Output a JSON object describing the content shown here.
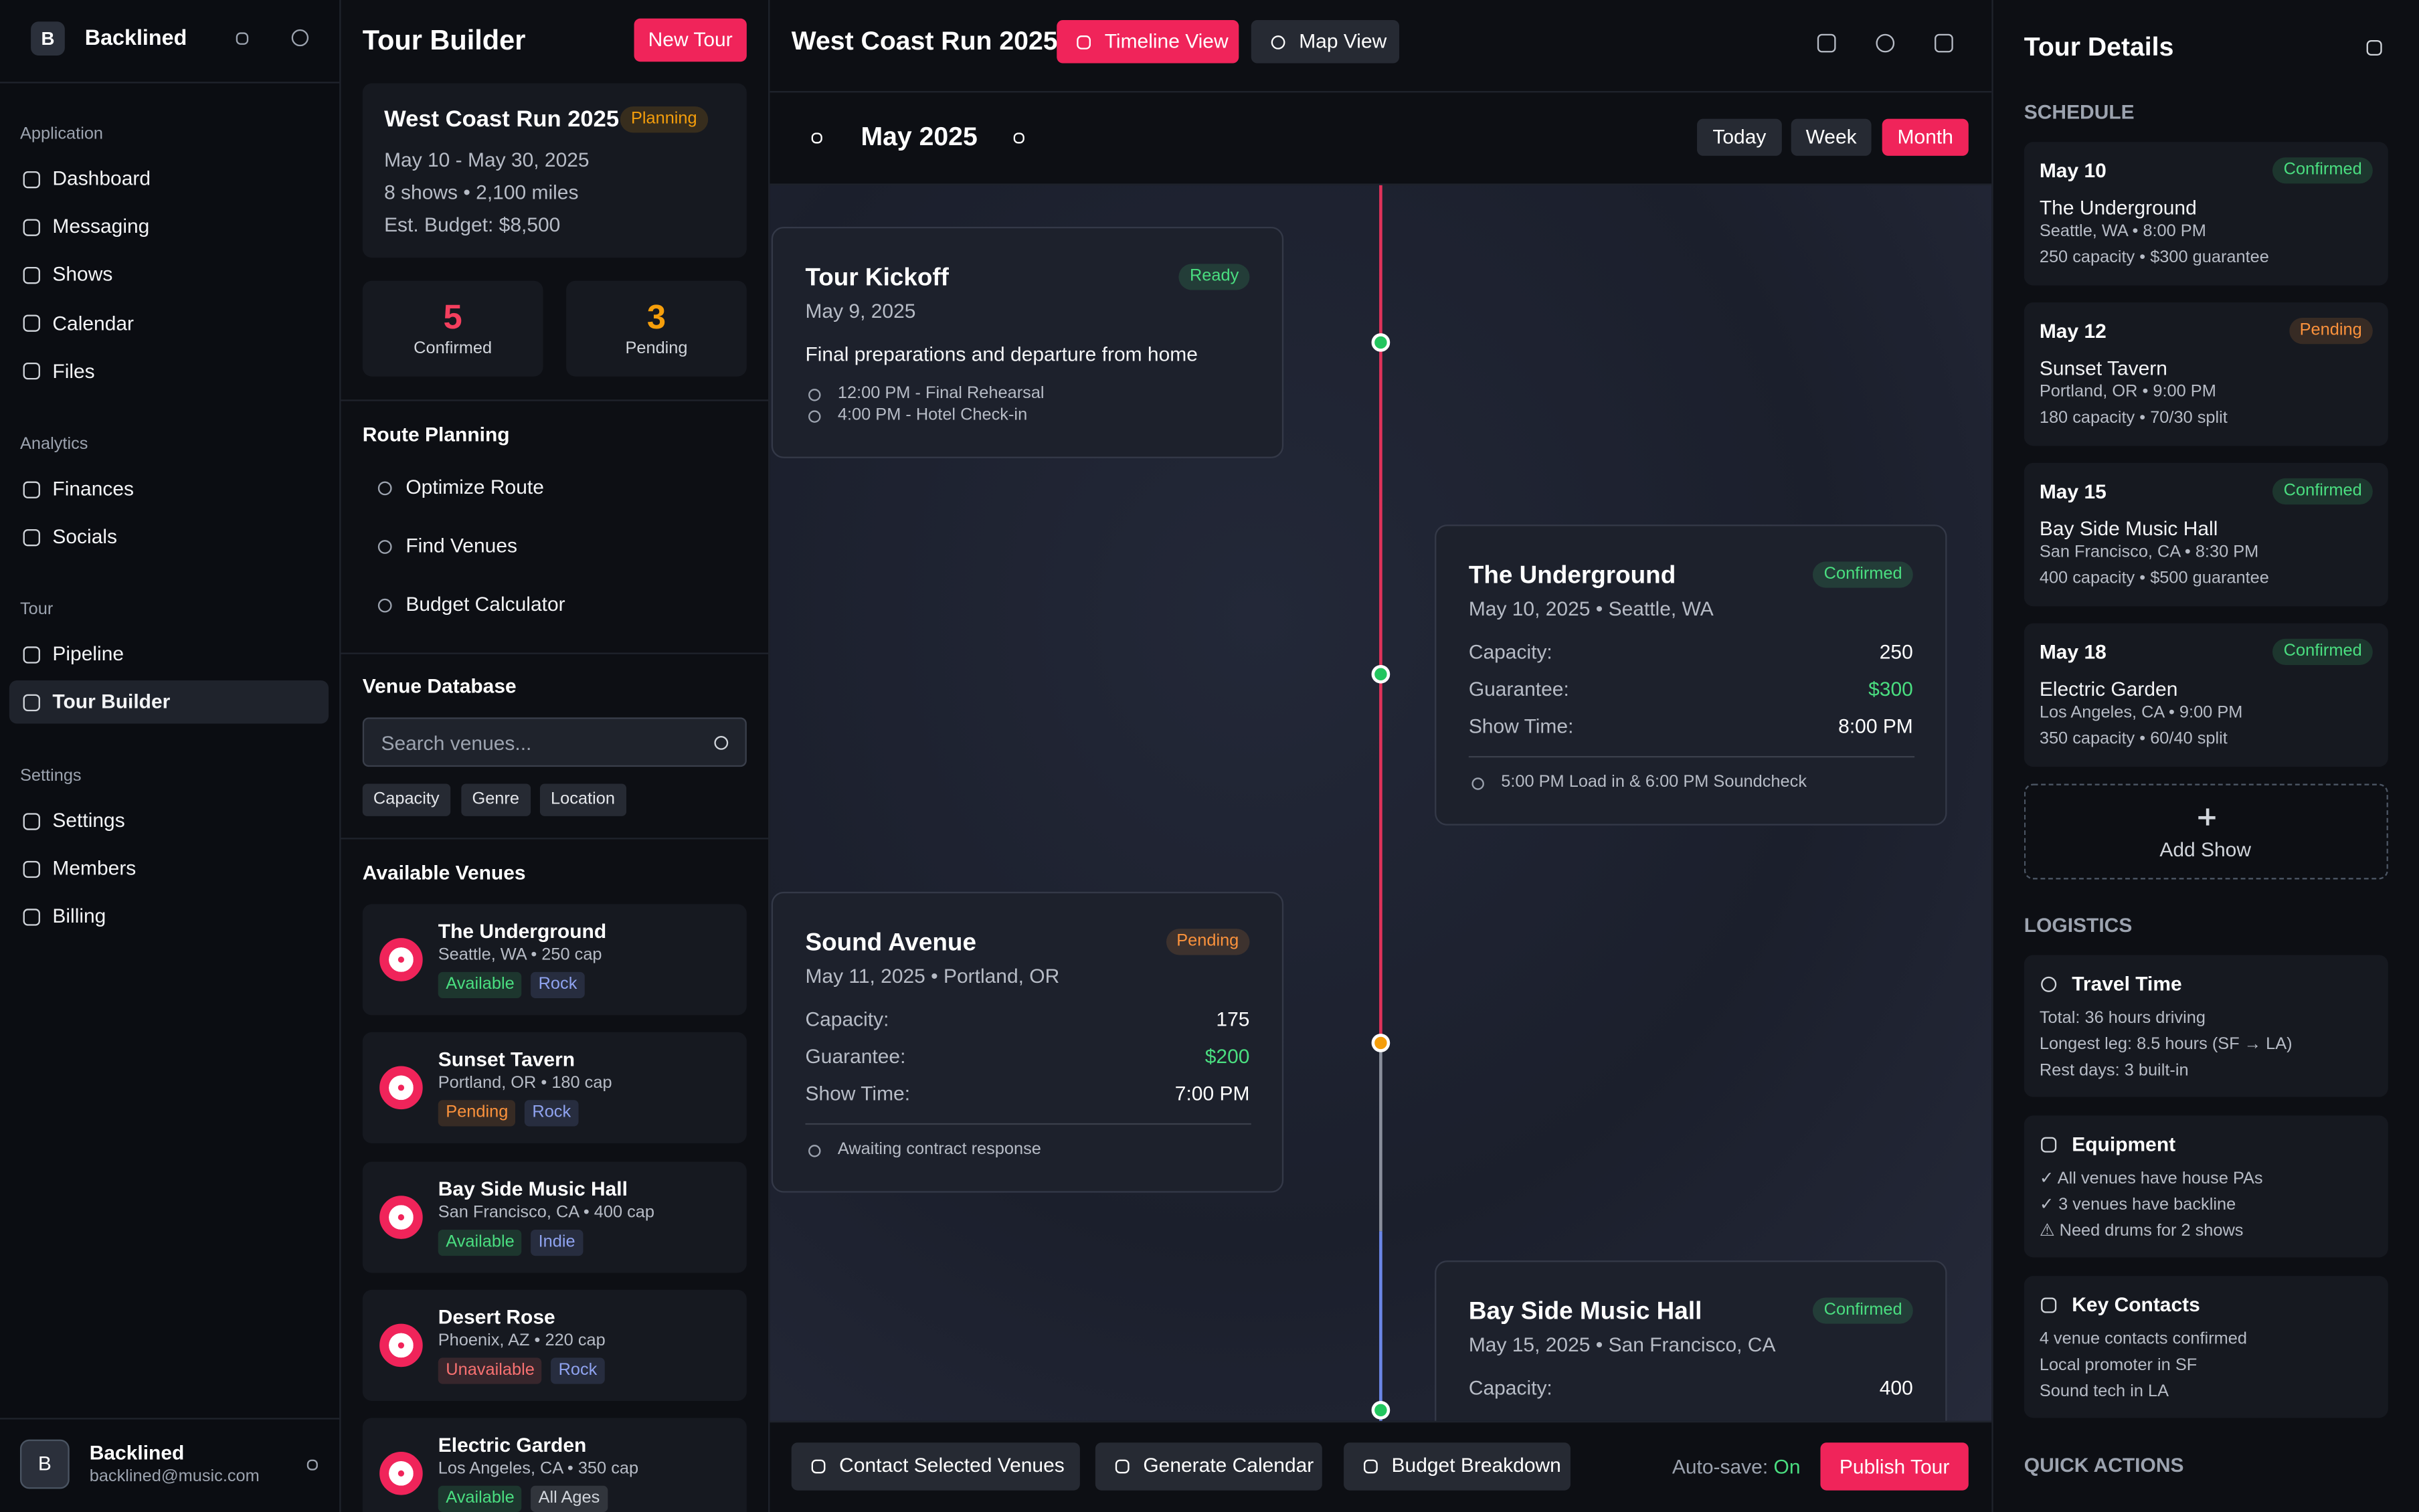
{
  "sidebar": {
    "workspace_initial": "B",
    "workspace": "Backlined",
    "sections": [
      {
        "title": "Application",
        "items": [
          "Dashboard",
          "Messaging",
          "Shows",
          "Calendar",
          "Files"
        ]
      },
      {
        "title": "Analytics",
        "items": [
          "Finances",
          "Socials"
        ]
      },
      {
        "title": "Tour",
        "items": [
          "Pipeline",
          "Tour Builder"
        ]
      },
      {
        "title": "Settings",
        "items": [
          "Settings",
          "Members",
          "Billing"
        ]
      }
    ],
    "user": {
      "initial": "B",
      "name": "Backlined",
      "email": "backlined@music.com"
    }
  },
  "builder": {
    "title": "Tour Builder",
    "new_button": "New Tour",
    "tour": {
      "name": "West Coast Run 2025",
      "status": {
        "text": "Planning",
        "color": "#f59e0b"
      },
      "dates": "May 10 - May 30, 2025",
      "summary": "8 shows • 2,100 miles",
      "budget": "Est. Budget: $8,500"
    },
    "stats": [
      {
        "value": 5,
        "label": "Confirmed",
        "color": "#f43f5e"
      },
      {
        "value": 3,
        "label": "Pending",
        "color": "#f59e0b"
      }
    ],
    "route_title": "Route Planning",
    "route_items": [
      "Optimize Route",
      "Find Venues",
      "Budget Calculator"
    ],
    "venue_db_title": "Venue Database",
    "search_placeholder": "Search venues...",
    "filters": [
      "Capacity",
      "Genre",
      "Location"
    ],
    "available_title": "Available Venues",
    "venues": [
      {
        "name": "The Underground",
        "detail": "Seattle, WA • 250 cap",
        "tags": [
          {
            "text": "Available",
            "color": "#4ade80"
          },
          {
            "text": "Rock",
            "color": "#8fa3f0"
          }
        ]
      },
      {
        "name": "Sunset Tavern",
        "detail": "Portland, OR • 180 cap",
        "tags": [
          {
            "text": "Pending",
            "color": "#fb923c"
          },
          {
            "text": "Rock",
            "color": "#8fa3f0"
          }
        ]
      },
      {
        "name": "Bay Side Music Hall",
        "detail": "San Francisco, CA • 400 cap",
        "tags": [
          {
            "text": "Available",
            "color": "#4ade80"
          },
          {
            "text": "Indie",
            "color": "#8fa3f0"
          }
        ]
      },
      {
        "name": "Desert Rose",
        "detail": "Phoenix, AZ • 220 cap",
        "tags": [
          {
            "text": "Unavailable",
            "color": "#f87171"
          },
          {
            "text": "Rock",
            "color": "#8fa3f0"
          }
        ]
      },
      {
        "name": "Electric Garden",
        "detail": "Los Angeles, CA • 350 cap",
        "tags": [
          {
            "text": "Available",
            "color": "#4ade80"
          },
          {
            "text": "All Ages",
            "color": "#d1d5db"
          }
        ]
      }
    ]
  },
  "main": {
    "title": "West Coast Run 2025",
    "views": [
      "Timeline View",
      "Map View"
    ],
    "month": "May 2025",
    "ranges": [
      "Today",
      "Week",
      "Month"
    ],
    "events": [
      {
        "title": "Tour Kickoff",
        "status": {
          "text": "Ready",
          "color": "#4ade80"
        },
        "date": "May 9, 2025",
        "description": "Final preparations and departure from home",
        "times": [
          "12:00 PM - Final Rehearsal",
          "4:00 PM - Hotel Check-in"
        ],
        "dot_color": "#22c55e"
      },
      {
        "title": "The Underground",
        "status": {
          "text": "Confirmed",
          "color": "#4ade80"
        },
        "date": "May 10, 2025 • Seattle, WA",
        "rows": [
          [
            "Capacity:",
            "250"
          ],
          [
            "Guarantee:",
            "$300"
          ],
          [
            "Show Time:",
            "8:00 PM"
          ]
        ],
        "note": "5:00 PM Load in & 6:00 PM Soundcheck",
        "dot_color": "#22c55e"
      },
      {
        "title": "Sound Avenue",
        "status": {
          "text": "Pending",
          "color": "#fb923c"
        },
        "date": "May 11, 2025 • Portland, OR",
        "rows": [
          [
            "Capacity:",
            "175"
          ],
          [
            "Guarantee:",
            "$200"
          ],
          [
            "Show Time:",
            "7:00 PM"
          ]
        ],
        "note": "Awaiting contract response",
        "dot_color": "#f59e0b"
      },
      {
        "title": "Bay Side Music Hall",
        "status": {
          "text": "Confirmed",
          "color": "#4ade80"
        },
        "date": "May 15, 2025 • San Francisco, CA",
        "rows": [
          [
            "Capacity:",
            "400"
          ]
        ],
        "dot_color": "#22c55e"
      }
    ],
    "footer": {
      "buttons": [
        "Contact Selected Venues",
        "Generate Calendar",
        "Budget Breakdown"
      ],
      "autosave_label": "Auto-save:",
      "autosave_value": "On",
      "publish": "Publish Tour"
    }
  },
  "details": {
    "title": "Tour Details",
    "schedule_title": "SCHEDULE",
    "shows": [
      {
        "date": "May 10",
        "status": {
          "text": "Confirmed",
          "color": "#4ade80"
        },
        "venue": "The Underground",
        "location": "Seattle, WA • 8:00 PM",
        "terms": "250 capacity • $300 guarantee"
      },
      {
        "date": "May 12",
        "status": {
          "text": "Pending",
          "color": "#fb923c"
        },
        "venue": "Sunset Tavern",
        "location": "Portland, OR • 9:00 PM",
        "terms": "180 capacity • 70/30 split"
      },
      {
        "date": "May 15",
        "status": {
          "text": "Confirmed",
          "color": "#4ade80"
        },
        "venue": "Bay Side Music Hall",
        "location": "San Francisco, CA • 8:30 PM",
        "terms": "400 capacity • $500 guarantee"
      },
      {
        "date": "May 18",
        "status": {
          "text": "Confirmed",
          "color": "#4ade80"
        },
        "venue": "Electric Garden",
        "location": "Los Angeles, CA • 9:00 PM",
        "terms": "350 capacity • 60/40 split"
      }
    ],
    "add_show": "Add Show",
    "logistics_title": "LOGISTICS",
    "logistics": [
      {
        "title": "Travel Time",
        "lines": [
          "Total: 36 hours driving",
          "Longest leg: 8.5 hours (SF → LA)",
          "Rest days: 3 built-in"
        ]
      },
      {
        "title": "Equipment",
        "lines": [
          "✓ All venues have house PAs",
          "✓ 3 venues have backline",
          "⚠ Need drums for 2 shows"
        ]
      },
      {
        "title": "Key Contacts",
        "lines": [
          "4 venue contacts confirmed",
          "Local promoter in SF",
          "Sound tech in LA"
        ]
      }
    ],
    "quick_actions_title": "QUICK ACTIONS"
  }
}
